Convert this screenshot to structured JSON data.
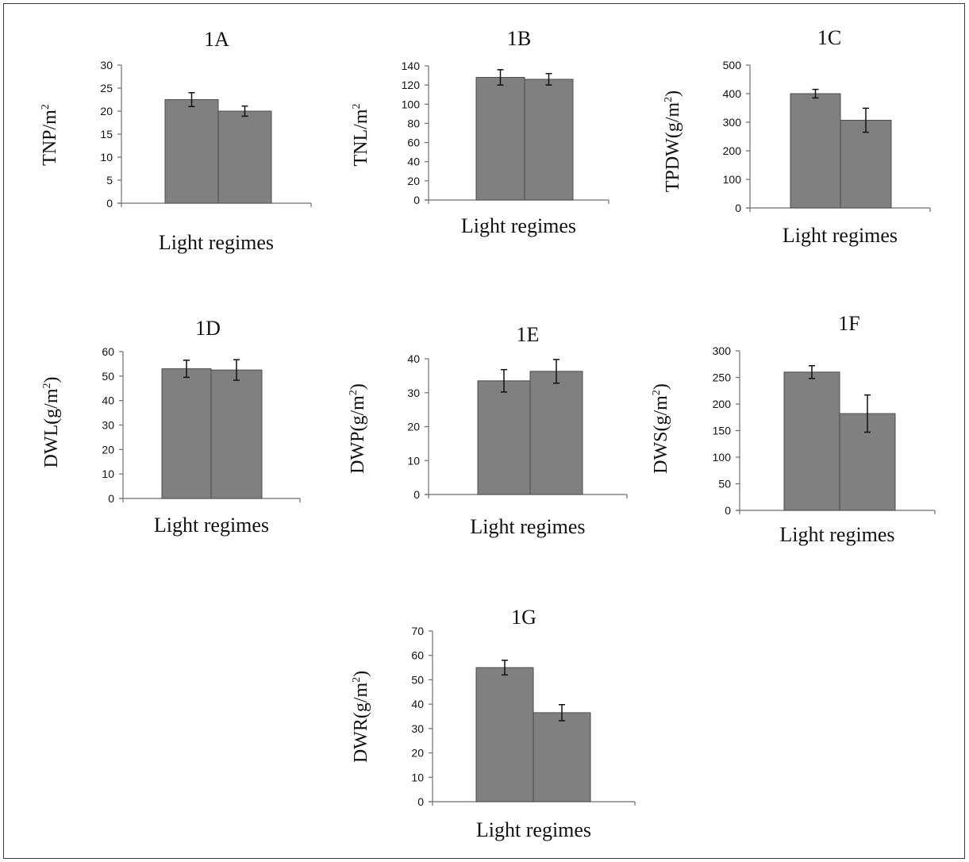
{
  "colors": {
    "bar": "#808080",
    "bar_border": "#4d4d4d",
    "axis": "#6e6e6e",
    "errorbar": "#111111"
  },
  "chart_data": [
    {
      "id": "1A",
      "type": "bar",
      "title": "1A",
      "xlabel": "Light regimes",
      "ylabel_main": "TNP/m",
      "ylabel_sup": "2",
      "ylabel_tail": "",
      "ylim": [
        0,
        30
      ],
      "yticks": [
        "0",
        "5",
        "10",
        "15",
        "20",
        "25",
        "30"
      ],
      "grid": false,
      "series": [
        {
          "values": [
            22.5,
            20.0
          ],
          "errors": [
            1.5,
            1.1
          ]
        }
      ]
    },
    {
      "id": "1B",
      "type": "bar",
      "title": "1B",
      "xlabel": "Light regimes",
      "ylabel_main": "TNL/m",
      "ylabel_sup": "2",
      "ylabel_tail": "",
      "ylim": [
        0,
        140
      ],
      "yticks": [
        "0",
        "20",
        "40",
        "60",
        "80",
        "100",
        "120",
        "140"
      ],
      "grid": false,
      "series": [
        {
          "values": [
            128,
            126
          ],
          "errors": [
            8,
            6
          ]
        }
      ]
    },
    {
      "id": "1C",
      "type": "bar",
      "title": "1C",
      "xlabel": "Light regimes",
      "ylabel_main": "TPDW(g/m",
      "ylabel_sup": "2",
      "ylabel_tail": ")",
      "ylim": [
        0,
        500
      ],
      "yticks": [
        "0",
        "100",
        "200",
        "300",
        "400",
        "500"
      ],
      "grid": false,
      "series": [
        {
          "values": [
            400,
            307
          ],
          "errors": [
            15,
            42
          ]
        }
      ]
    },
    {
      "id": "1D",
      "type": "bar",
      "title": "1D",
      "xlabel": "Light regimes",
      "ylabel_main": "DWL(g/m",
      "ylabel_sup": "2",
      "ylabel_tail": ")",
      "ylim": [
        0,
        60
      ],
      "yticks": [
        "0",
        "10",
        "20",
        "30",
        "40",
        "50",
        "60"
      ],
      "grid": false,
      "series": [
        {
          "values": [
            53,
            52.5
          ],
          "errors": [
            3.5,
            4.2
          ]
        }
      ]
    },
    {
      "id": "1E",
      "type": "bar",
      "title": "1E",
      "xlabel": "Light regimes",
      "ylabel_main": "DWP(g/m",
      "ylabel_sup": "2",
      "ylabel_tail": ")",
      "ylim": [
        0,
        40
      ],
      "yticks": [
        "0",
        "10",
        "20",
        "30",
        "40"
      ],
      "grid": false,
      "series": [
        {
          "values": [
            33.5,
            36.3
          ],
          "errors": [
            3.3,
            3.5
          ]
        }
      ]
    },
    {
      "id": "1F",
      "type": "bar",
      "title": "1F",
      "xlabel": "Light regimes",
      "ylabel_main": "DWS(g/m",
      "ylabel_sup": "2",
      "ylabel_tail": ")",
      "ylim": [
        0,
        300
      ],
      "yticks": [
        "0",
        "50",
        "100",
        "150",
        "200",
        "250",
        "300"
      ],
      "grid": false,
      "series": [
        {
          "values": [
            260,
            182
          ],
          "errors": [
            12,
            35
          ]
        }
      ]
    },
    {
      "id": "1G",
      "type": "bar",
      "title": "1G",
      "xlabel": "Light regimes",
      "ylabel_main": "DWR(g/m",
      "ylabel_sup": "2",
      "ylabel_tail": ")",
      "ylim": [
        0,
        70
      ],
      "yticks": [
        "0",
        "10",
        "20",
        "30",
        "40",
        "50",
        "60",
        "70"
      ],
      "grid": false,
      "series": [
        {
          "values": [
            55,
            36.5
          ],
          "errors": [
            3,
            3.3
          ]
        }
      ]
    }
  ]
}
